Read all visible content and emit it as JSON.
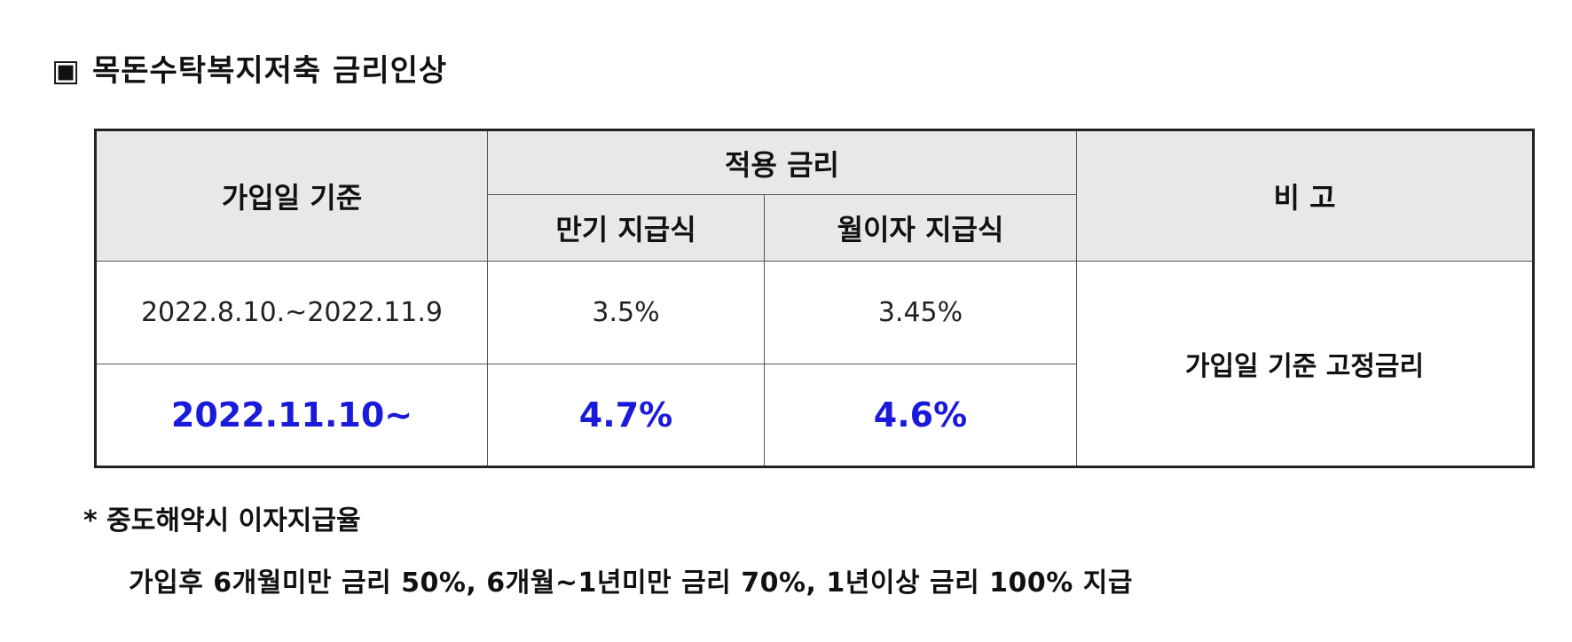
{
  "title": "▣ 목돈수탁복지저축 금리인상",
  "table": {
    "header": {
      "period": "가입일 기준",
      "rate_group": "적용 금리",
      "maturity": "만기 지급식",
      "monthly": "월이자 지급식",
      "note": "비 고"
    },
    "rows": [
      [
        "2022.8.10.~2022.11.9",
        "3.5%",
        "3.45%"
      ],
      [
        "2022.11.10~",
        "4.7%",
        "4.6%"
      ]
    ],
    "remark": "가입일 기준 고정금리"
  },
  "footnote": {
    "heading": "* 중도해약시 이자지급율",
    "text": "가입후 6개월미만 금리 50%, 6개월~1년미만 금리 70%, 1년이상 금리 100% 지급"
  }
}
